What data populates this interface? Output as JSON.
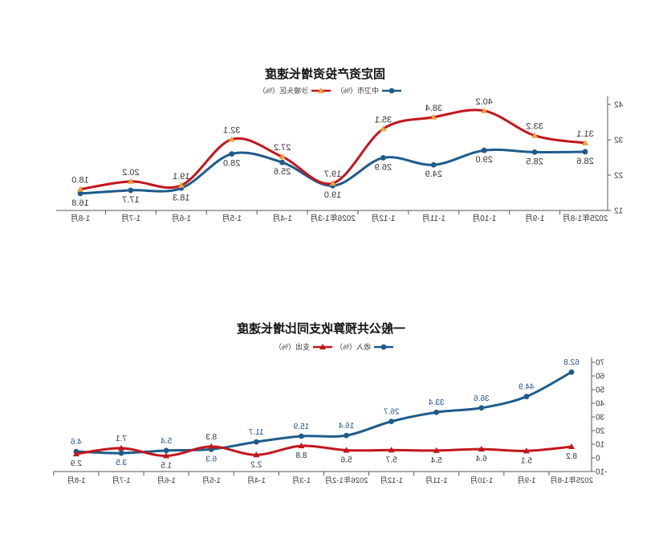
{
  "chart_data": [
    {
      "type": "line",
      "title": "固定资产投资增长速度",
      "categories": [
        "2025年1-8月",
        "1-9月",
        "1-10月",
        "1-11月",
        "1-12月",
        "2026年1-3月",
        "1-4月",
        "1-5月",
        "1-6月",
        "1-7月",
        "1-8月"
      ],
      "series": [
        {
          "name": "中卫市（%）",
          "values": [
            28.6,
            28.5,
            29.0,
            24.9,
            26.9,
            19.0,
            25.6,
            28.0,
            18.3,
            17.7,
            16.8
          ],
          "color": "#1e5b8c",
          "marker": "circle",
          "marker_color": "#1e5b8c",
          "label_color": "#333333"
        },
        {
          "name": "沙坡头区（%）",
          "values": [
            31.1,
            33.2,
            40.2,
            38.4,
            35.1,
            19.7,
            27.2,
            32.1,
            19.1,
            20.2,
            18.0
          ],
          "color": "#c3161c",
          "marker": "triangle",
          "marker_color": "#f0a23c",
          "label_color": "#333333"
        }
      ],
      "ylim": [
        12,
        42
      ],
      "yticks": [
        12,
        22,
        32,
        42
      ],
      "grid": false,
      "legend": "top-center"
    },
    {
      "type": "line",
      "title": "一般公共预算收支同比增长速度",
      "categories": [
        "2025年1-8月",
        "1-9月",
        "1-10月",
        "1-11月",
        "1-12月",
        "2026年1-2月",
        "1-3月",
        "1-4月",
        "1-5月",
        "1-6月",
        "1-7月",
        "1-8月"
      ],
      "series": [
        {
          "name": "收入（%）",
          "values": [
            62.8,
            44.9,
            36.6,
            33.4,
            26.7,
            16.4,
            15.9,
            11.7,
            6.3,
            5.4,
            3.5,
            4.6
          ],
          "color": "#1e5b8c",
          "marker": "circle",
          "marker_color": "#1e5b8c",
          "label_color": "#1e4f8c"
        },
        {
          "name": "支出（%）",
          "values": [
            8.2,
            5.1,
            6.4,
            5.4,
            5.7,
            5.6,
            8.8,
            2.2,
            8.3,
            1.5,
            7.1,
            2.9
          ],
          "color": "#c3161c",
          "marker": "triangle",
          "marker_color": "#c3161c",
          "label_color": "#333333"
        }
      ],
      "ylim": [
        -10,
        70
      ],
      "yticks": [
        -10,
        0,
        10,
        20,
        30,
        40,
        50,
        60,
        70
      ],
      "grid": false,
      "legend": "top-center"
    }
  ]
}
